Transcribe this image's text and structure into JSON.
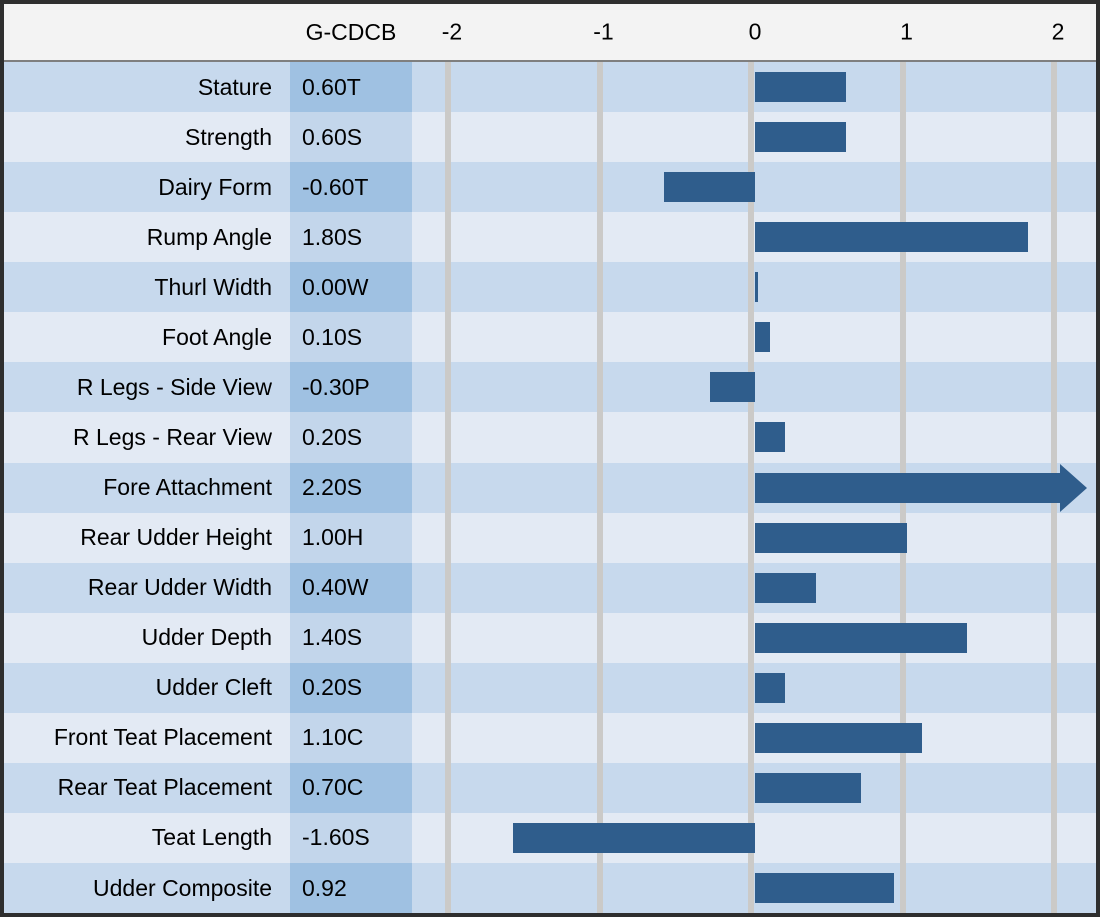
{
  "header": {
    "value_column_label": "G-CDCB"
  },
  "colors": {
    "bar": "#2f5d8c",
    "row-dark": "#c7d9ed",
    "row-light": "#e3eaf4",
    "val-dark": "#9fc1e2",
    "val-light": "#c3d6eb",
    "grid": "#cbcac8",
    "header-bg": "#f3f3f3",
    "border": "#2e2e2e",
    "rule": "#7f7f7f"
  },
  "chart_data": {
    "type": "bar",
    "orientation": "horizontal",
    "title": "",
    "value_column_header": "G-CDCB",
    "x_axis": {
      "ticks": [
        -2,
        -1,
        0,
        1,
        2
      ],
      "min": -2.25,
      "max": 2.25,
      "gridlines": true
    },
    "legend": "none",
    "rows": [
      {
        "trait": "Stature",
        "value_label": "0.60T",
        "value": 0.6
      },
      {
        "trait": "Strength",
        "value_label": "0.60S",
        "value": 0.6
      },
      {
        "trait": "Dairy Form",
        "value_label": "-0.60T",
        "value": -0.6
      },
      {
        "trait": "Rump Angle",
        "value_label": "1.80S",
        "value": 1.8
      },
      {
        "trait": "Thurl Width",
        "value_label": "0.00W",
        "value": 0.0
      },
      {
        "trait": "Foot Angle",
        "value_label": "0.10S",
        "value": 0.1
      },
      {
        "trait": "R Legs - Side View",
        "value_label": "-0.30P",
        "value": -0.3
      },
      {
        "trait": "R Legs - Rear View",
        "value_label": "0.20S",
        "value": 0.2
      },
      {
        "trait": "Fore Attachment",
        "value_label": "2.20S",
        "value": 2.2,
        "overflow_arrow": true
      },
      {
        "trait": "Rear Udder Height",
        "value_label": "1.00H",
        "value": 1.0
      },
      {
        "trait": "Rear Udder Width",
        "value_label": "0.40W",
        "value": 0.4
      },
      {
        "trait": "Udder Depth",
        "value_label": "1.40S",
        "value": 1.4
      },
      {
        "trait": "Udder Cleft",
        "value_label": "0.20S",
        "value": 0.2
      },
      {
        "trait": "Front Teat Placement",
        "value_label": "1.10C",
        "value": 1.1
      },
      {
        "trait": "Rear Teat Placement",
        "value_label": "0.70C",
        "value": 0.7
      },
      {
        "trait": "Teat Length",
        "value_label": "-1.60S",
        "value": -1.6
      },
      {
        "trait": "Udder Composite",
        "value_label": "0.92",
        "value": 0.92
      }
    ]
  }
}
